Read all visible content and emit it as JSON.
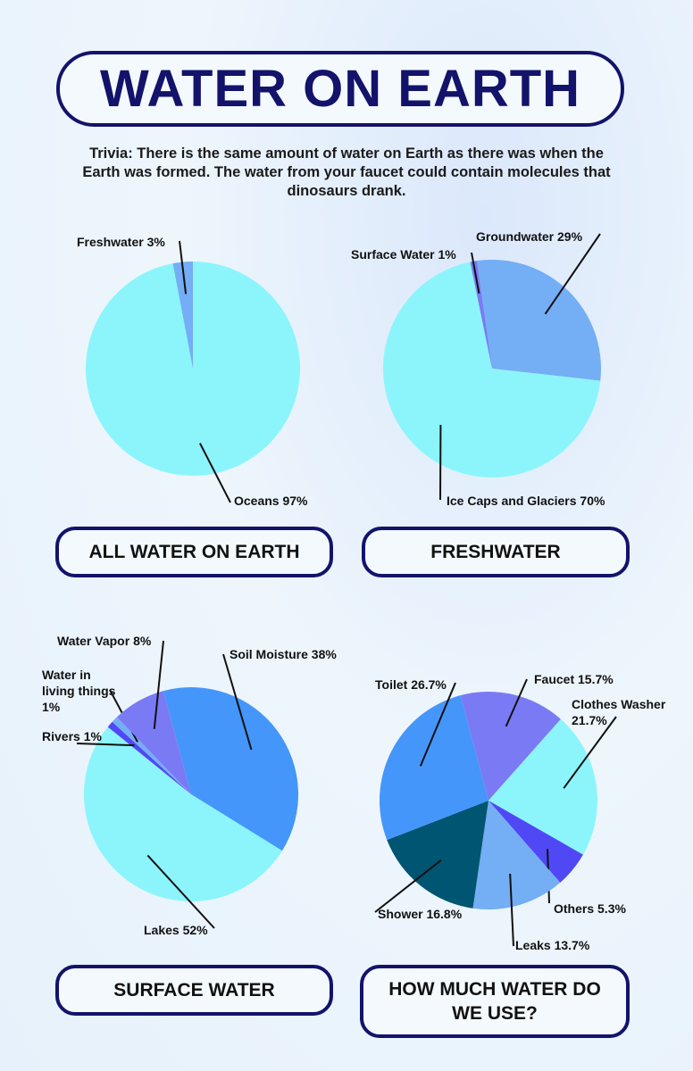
{
  "title": "WATER ON EARTH",
  "trivia": "Trivia: There is the same amount of water on Earth as there was when the Earth was formed. The water from your faucet could contain molecules that dinosaurs drank.",
  "chart_data": [
    {
      "type": "pie",
      "title": "ALL WATER ON EARTH",
      "categories": [
        "Oceans",
        "Freshwater"
      ],
      "values": [
        97,
        3
      ],
      "value_labels": [
        "97%",
        "3%"
      ],
      "colors": [
        "#8cf5fc",
        "#74aef5"
      ]
    },
    {
      "type": "pie",
      "title": "FRESHWATER",
      "categories": [
        "Groundwater",
        "Ice Caps and Glaciers",
        "Surface Water"
      ],
      "values": [
        29,
        70,
        1
      ],
      "value_labels": [
        "29%",
        "70%",
        "1%"
      ],
      "colors": [
        "#74aef5",
        "#8cf5fc",
        "#7b7af5"
      ]
    },
    {
      "type": "pie",
      "title": "SURFACE WATER",
      "categories": [
        "Soil Moisture",
        "Lakes",
        "Rivers",
        "Water in living things",
        "Water Vapor"
      ],
      "values": [
        38,
        52,
        1,
        1,
        8
      ],
      "value_labels": [
        "38%",
        "52%",
        "1%",
        "1%",
        "8%"
      ],
      "colors": [
        "#4496fa",
        "#8cf5fc",
        "#5048f5",
        "#74aef5",
        "#7b7af5"
      ]
    },
    {
      "type": "pie",
      "title": "HOW MUCH WATER DO WE USE?",
      "categories": [
        "Faucet",
        "Clothes Washer",
        "Others",
        "Leaks",
        "Shower",
        "Toilet"
      ],
      "values": [
        15.7,
        21.7,
        5.3,
        13.7,
        16.8,
        26.7
      ],
      "value_labels": [
        "15.7%",
        "21.7%",
        "5.3%",
        "13.7%",
        "16.8%",
        "26.7%"
      ],
      "colors": [
        "#7b7af5",
        "#8cf5fc",
        "#5048f5",
        "#74aef5",
        "#005572",
        "#4496fa"
      ]
    }
  ]
}
